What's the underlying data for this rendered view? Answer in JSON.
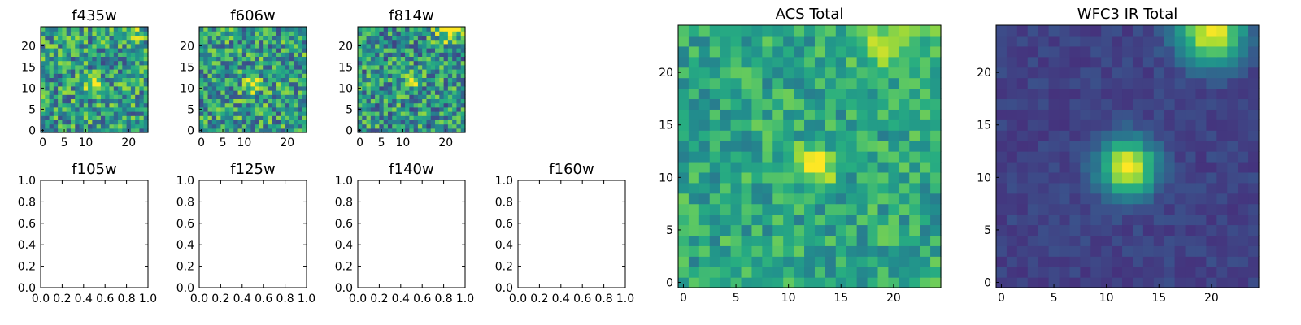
{
  "chart_data": [
    {
      "type": "heatmap",
      "title": "f435w",
      "xticks": [
        "0",
        "5",
        "10",
        "20"
      ],
      "yticks": [
        "0",
        "5",
        "10",
        "15",
        "20"
      ],
      "grid_size": [
        25,
        25
      ],
      "colormap": "viridis",
      "background_level": 0.55,
      "noise": 0.32,
      "features": [
        {
          "x": 12,
          "y": 11,
          "amp": 0.45,
          "sigma": 1.3
        },
        {
          "x": 21,
          "y": 24,
          "amp": 0.25,
          "sigma": 2.0
        }
      ],
      "seed": 11
    },
    {
      "type": "heatmap",
      "title": "f606w",
      "xticks": [
        "0",
        "5",
        "10",
        "20"
      ],
      "yticks": [
        "0",
        "5",
        "10",
        "15",
        "20"
      ],
      "grid_size": [
        25,
        25
      ],
      "colormap": "viridis",
      "background_level": 0.55,
      "noise": 0.32,
      "features": [
        {
          "x": 12,
          "y": 11,
          "amp": 0.55,
          "sigma": 1.3
        }
      ],
      "seed": 23
    },
    {
      "type": "heatmap",
      "title": "f814w",
      "xticks": [
        "0",
        "5",
        "10",
        "20"
      ],
      "yticks": [
        "0",
        "5",
        "10",
        "15",
        "20"
      ],
      "grid_size": [
        25,
        25
      ],
      "colormap": "viridis",
      "background_level": 0.52,
      "noise": 0.32,
      "features": [
        {
          "x": 12,
          "y": 12,
          "amp": 0.45,
          "sigma": 1.3
        },
        {
          "x": 21,
          "y": 24,
          "amp": 0.45,
          "sigma": 2.2
        }
      ],
      "seed": 37
    },
    {
      "type": "empty",
      "title": "f105w",
      "xticks": [
        "0.0",
        "0.2",
        "0.4",
        "0.6",
        "0.8",
        "1.0"
      ],
      "yticks": [
        "0.0",
        "0.2",
        "0.4",
        "0.6",
        "0.8",
        "1.0"
      ],
      "xlim": [
        0,
        1
      ],
      "ylim": [
        0,
        1
      ]
    },
    {
      "type": "empty",
      "title": "f125w",
      "xticks": [
        "0.0",
        "0.2",
        "0.4",
        "0.6",
        "0.8",
        "1.0"
      ],
      "yticks": [
        "0.0",
        "0.2",
        "0.4",
        "0.6",
        "0.8",
        "1.0"
      ],
      "xlim": [
        0,
        1
      ],
      "ylim": [
        0,
        1
      ]
    },
    {
      "type": "empty",
      "title": "f140w",
      "xticks": [
        "0.0",
        "0.2",
        "0.4",
        "0.6",
        "0.8",
        "1.0"
      ],
      "yticks": [
        "0.0",
        "0.2",
        "0.4",
        "0.6",
        "0.8",
        "1.0"
      ],
      "xlim": [
        0,
        1
      ],
      "ylim": [
        0,
        1
      ]
    },
    {
      "type": "empty",
      "title": "f160w",
      "xticks": [
        "0.0",
        "0.2",
        "0.4",
        "0.6",
        "0.8",
        "1.0"
      ],
      "yticks": [
        "0.0",
        "0.2",
        "0.4",
        "0.6",
        "0.8",
        "1.0"
      ],
      "xlim": [
        0,
        1
      ],
      "ylim": [
        0,
        1
      ]
    },
    {
      "type": "heatmap",
      "title": "ACS Total",
      "xticks": [
        "0",
        "5",
        "10",
        "15",
        "20"
      ],
      "yticks": [
        "0",
        "5",
        "10",
        "15",
        "20"
      ],
      "grid_size": [
        25,
        25
      ],
      "colormap": "viridis",
      "background_level": 0.6,
      "noise": 0.18,
      "features": [
        {
          "x": 12.5,
          "y": 11,
          "amp": 0.4,
          "sigma": 1.4
        },
        {
          "x": 20,
          "y": 24,
          "amp": 0.28,
          "sigma": 2.5
        }
      ],
      "seed": 51
    },
    {
      "type": "heatmap",
      "title": "WFC3 IR Total",
      "xticks": [
        "0",
        "5",
        "10",
        "15",
        "20"
      ],
      "yticks": [
        "0",
        "5",
        "10",
        "15",
        "20"
      ],
      "grid_size": [
        25,
        25
      ],
      "colormap": "viridis",
      "background_level": 0.2,
      "noise": 0.05,
      "features": [
        {
          "x": 12,
          "y": 11,
          "amp": 0.8,
          "sigma": 1.9
        },
        {
          "x": 20,
          "y": 24,
          "amp": 0.8,
          "sigma": 2.2
        }
      ],
      "seed": 67
    }
  ]
}
